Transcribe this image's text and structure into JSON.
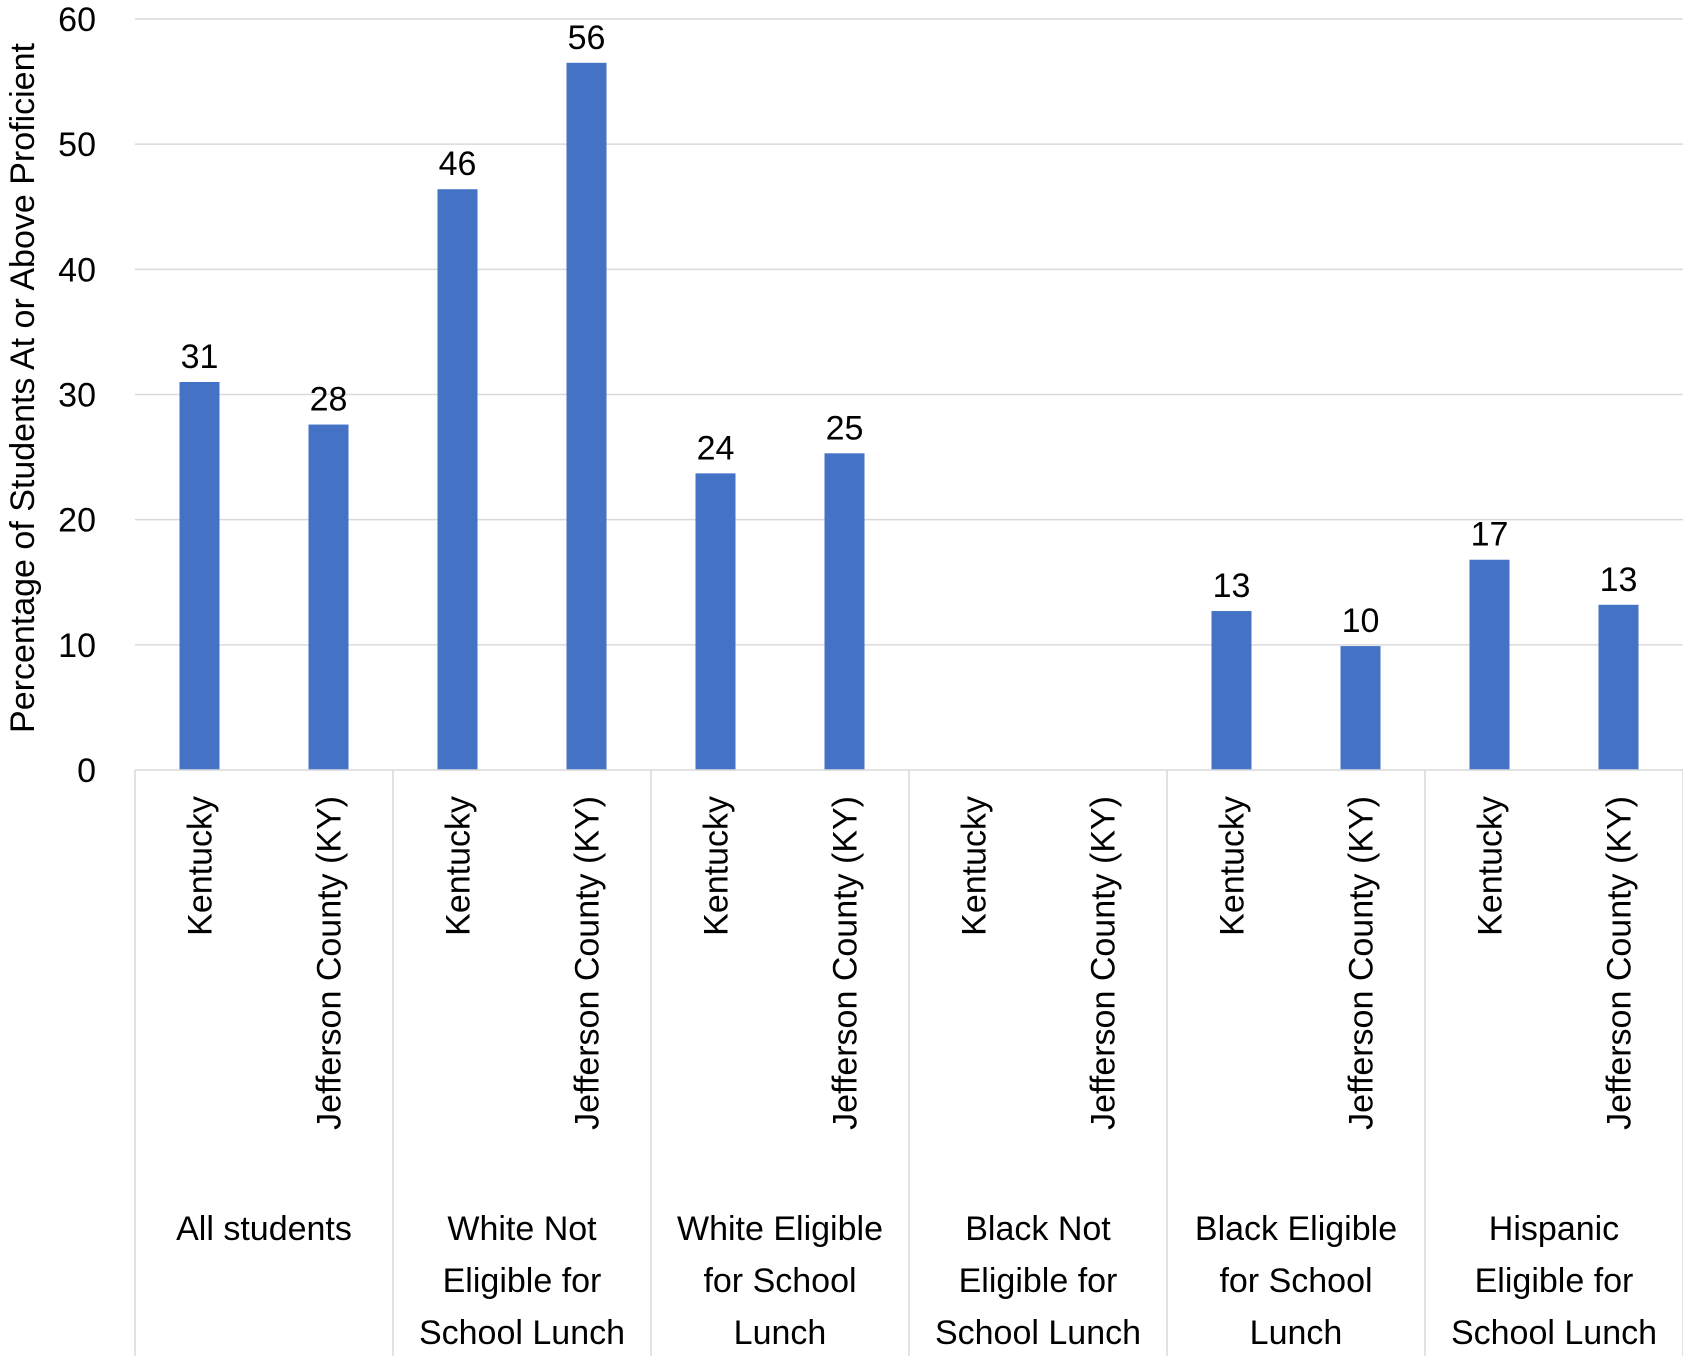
{
  "chart_data": {
    "type": "bar",
    "title": "",
    "xlabel": "",
    "ylabel": "Percentage of Students At or Above Proficient",
    "ylim": [
      0,
      60
    ],
    "yticks": [
      0,
      10,
      20,
      30,
      40,
      50,
      60
    ],
    "grid": true,
    "legend": "none",
    "bar_color": "#4472C4",
    "groups": [
      {
        "label": [
          "All students"
        ],
        "categories": [
          "Kentucky",
          "Jefferson County (KY)"
        ]
      },
      {
        "label": [
          "White Not",
          "Eligible for",
          "School Lunch"
        ],
        "categories": [
          "Kentucky",
          "Jefferson County (KY)"
        ]
      },
      {
        "label": [
          "White Eligible",
          "for School",
          "Lunch"
        ],
        "categories": [
          "Kentucky",
          "Jefferson County (KY)"
        ]
      },
      {
        "label": [
          "Black Not",
          "Eligible for",
          "School Lunch"
        ],
        "categories": [
          "Kentucky",
          "Jefferson County (KY)"
        ]
      },
      {
        "label": [
          "Black Eligible",
          "for School",
          "Lunch"
        ],
        "categories": [
          "Kentucky",
          "Jefferson County (KY)"
        ]
      },
      {
        "label": [
          "Hispanic",
          "Eligible for",
          "School Lunch"
        ],
        "categories": [
          "Kentucky",
          "Jefferson County (KY)"
        ]
      }
    ],
    "values": [
      31,
      27.6,
      46.4,
      56.5,
      23.7,
      25.3,
      null,
      null,
      12.7,
      9.9,
      16.8,
      13.2
    ],
    "data_labels": [
      "31",
      "28",
      "46",
      "56",
      "24",
      "25",
      "",
      "",
      "13",
      "10",
      "17",
      "13"
    ]
  }
}
